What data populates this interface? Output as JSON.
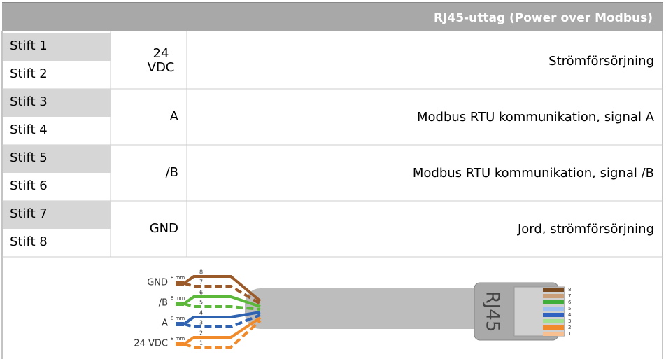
{
  "header": {
    "title": "RJ45-uttag (Power over Modbus)"
  },
  "table": {
    "rows": [
      {
        "pins": [
          "Stift 1",
          "Stift 2"
        ],
        "signal": "24 VDC",
        "description": "Strömförsörjning"
      },
      {
        "pins": [
          "Stift 3",
          "Stift 4"
        ],
        "signal": "A",
        "description": "Modbus RTU kommunikation, signal A"
      },
      {
        "pins": [
          "Stift 5",
          "Stift 6"
        ],
        "signal": "/B",
        "description": "Modbus RTU kommunikation, signal /B"
      },
      {
        "pins": [
          "Stift 7",
          "Stift 8"
        ],
        "signal": "GND",
        "description": "Jord, strömförsörjning"
      }
    ]
  },
  "diagram": {
    "wires": [
      {
        "label": "GND",
        "strip": "8 mm",
        "pins": [
          8,
          7
        ]
      },
      {
        "label": "/B",
        "strip": "8 mm",
        "pins": [
          6,
          5
        ]
      },
      {
        "label": "A",
        "strip": "8 mm",
        "pins": [
          4,
          3
        ]
      },
      {
        "label": "24 VDC",
        "strip": "8 mm",
        "pins": [
          2,
          1
        ]
      }
    ],
    "connector_label": "RJ45",
    "connector_pins": [
      8,
      7,
      6,
      5,
      4,
      3,
      2,
      1
    ]
  }
}
